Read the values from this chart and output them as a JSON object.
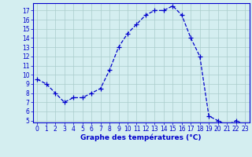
{
  "x": [
    0,
    1,
    2,
    3,
    4,
    5,
    6,
    7,
    8,
    9,
    10,
    11,
    12,
    13,
    14,
    15,
    16,
    17,
    18,
    19,
    20,
    21,
    22,
    23
  ],
  "y": [
    9.5,
    9.0,
    8.0,
    7.0,
    7.5,
    7.5,
    8.0,
    8.5,
    10.5,
    13.0,
    14.5,
    15.5,
    16.5,
    17.0,
    17.0,
    17.5,
    16.5,
    14.0,
    12.0,
    5.5,
    5.0,
    4.5,
    5.0,
    4.5
  ],
  "xlabel": "Graphe des températures (°C)",
  "ylim": [
    4.8,
    17.8
  ],
  "xlim": [
    -0.5,
    23.5
  ],
  "yticks": [
    5,
    6,
    7,
    8,
    9,
    10,
    11,
    12,
    13,
    14,
    15,
    16,
    17
  ],
  "xticks": [
    0,
    1,
    2,
    3,
    4,
    5,
    6,
    7,
    8,
    9,
    10,
    11,
    12,
    13,
    14,
    15,
    16,
    17,
    18,
    19,
    20,
    21,
    22,
    23
  ],
  "line_color": "#0000cc",
  "marker": "+",
  "marker_size": 4,
  "bg_color": "#d4eef0",
  "grid_color": "#aacccc",
  "axis_color": "#0000cc",
  "label_color": "#0000cc",
  "tick_color": "#0000cc",
  "tick_fontsize": 5.5,
  "xlabel_fontsize": 6.5
}
